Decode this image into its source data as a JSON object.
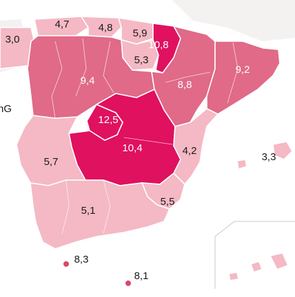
{
  "colors": {
    "low": "#f4b9c4",
    "mid": "#e06a88",
    "high": "#e0115f",
    "label_dark": "#1a1a1a",
    "label_light": "#ffffff",
    "island_dot": "#d94a6a"
  },
  "regions": {
    "galicia": "3,0",
    "asturias": "4,7",
    "cantabria": "4,8",
    "pais_vasco": "5,9",
    "navarra": "10,8",
    "la_rioja": "5,3",
    "castilla_leon": "9,4",
    "aragon": "8,8",
    "cataluna": "9,2",
    "madrid": "12,5",
    "castilla_la_mancha": "10,4",
    "extremadura": "5,7",
    "valencia": "4,2",
    "baleares": "3,3",
    "murcia": "5,5",
    "andalucia": "5,1",
    "ceuta": "8,3",
    "melilla": "8,1"
  },
  "cropped_label": "nG"
}
